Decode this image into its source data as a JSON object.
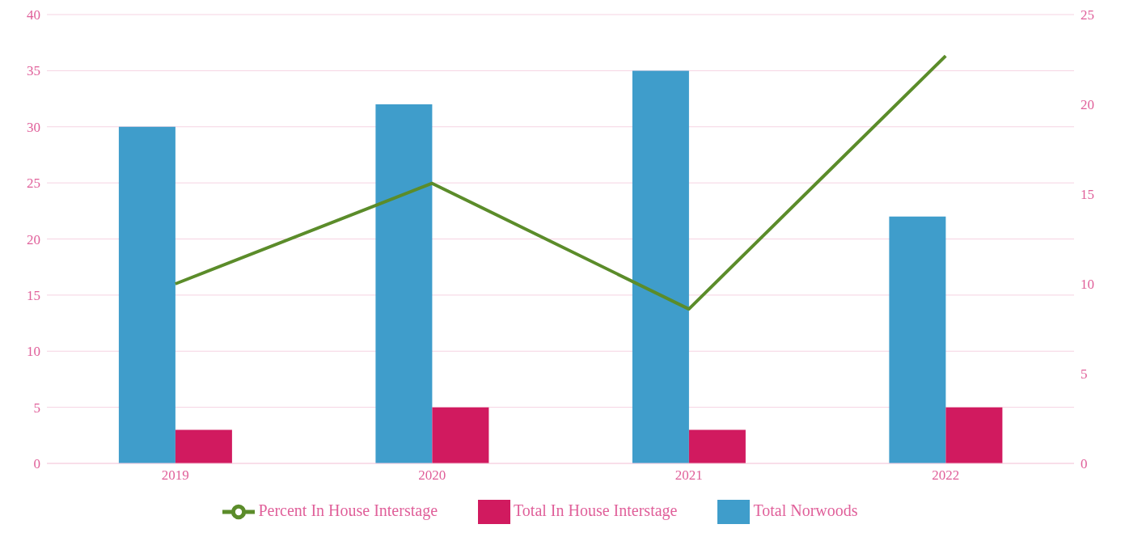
{
  "chart_data": {
    "type": "bar",
    "categories": [
      "2019",
      "2020",
      "2021",
      "2022"
    ],
    "series": [
      {
        "name": "Total Norwoods",
        "color": "#3f9dcb",
        "values": [
          30,
          32,
          35,
          22
        ]
      },
      {
        "name": "Total In House Interstage",
        "color": "#d11a5f",
        "values": [
          3,
          5,
          3,
          5
        ]
      },
      {
        "name": "Percent In House Interstage",
        "type": "line",
        "axis": "y2",
        "color": "#5b8c2a",
        "values": [
          10,
          15.6,
          8.6,
          22.7
        ]
      }
    ],
    "ylim": [
      0,
      40
    ],
    "yticks": [
      0,
      5,
      10,
      15,
      20,
      25,
      30,
      35,
      40
    ],
    "y2lim": [
      0,
      25
    ],
    "y2ticks": [
      0,
      5,
      10,
      15,
      20,
      25
    ],
    "grid": "y",
    "legend": "bottom",
    "marker": "none",
    "line_style": "solid"
  }
}
